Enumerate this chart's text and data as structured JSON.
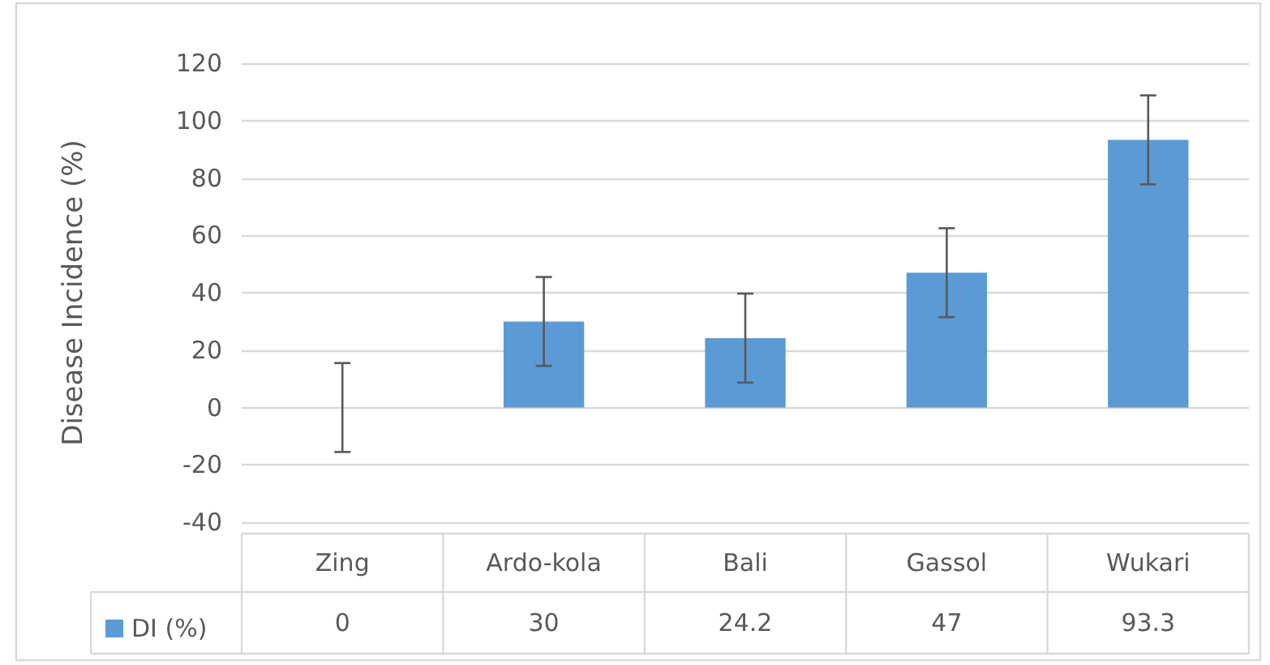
{
  "chart_data": {
    "type": "bar",
    "ylabel": "Disease Incidence (%)",
    "categories": [
      "Zing",
      "Ardo-kola",
      "Bali",
      "Gassol",
      "Wukari"
    ],
    "series": [
      {
        "name": "DI (%)",
        "color": "#5b9bd5",
        "values": [
          0,
          30,
          24.2,
          47,
          93.3
        ],
        "errors": [
          15.5,
          15.5,
          15.5,
          15.5,
          15.5
        ]
      }
    ],
    "ylim": [
      -40,
      120
    ],
    "yticks": [
      -40,
      -20,
      0,
      20,
      40,
      60,
      80,
      100,
      120
    ],
    "grid": "y",
    "legend": "bottom",
    "data_labels": true
  }
}
